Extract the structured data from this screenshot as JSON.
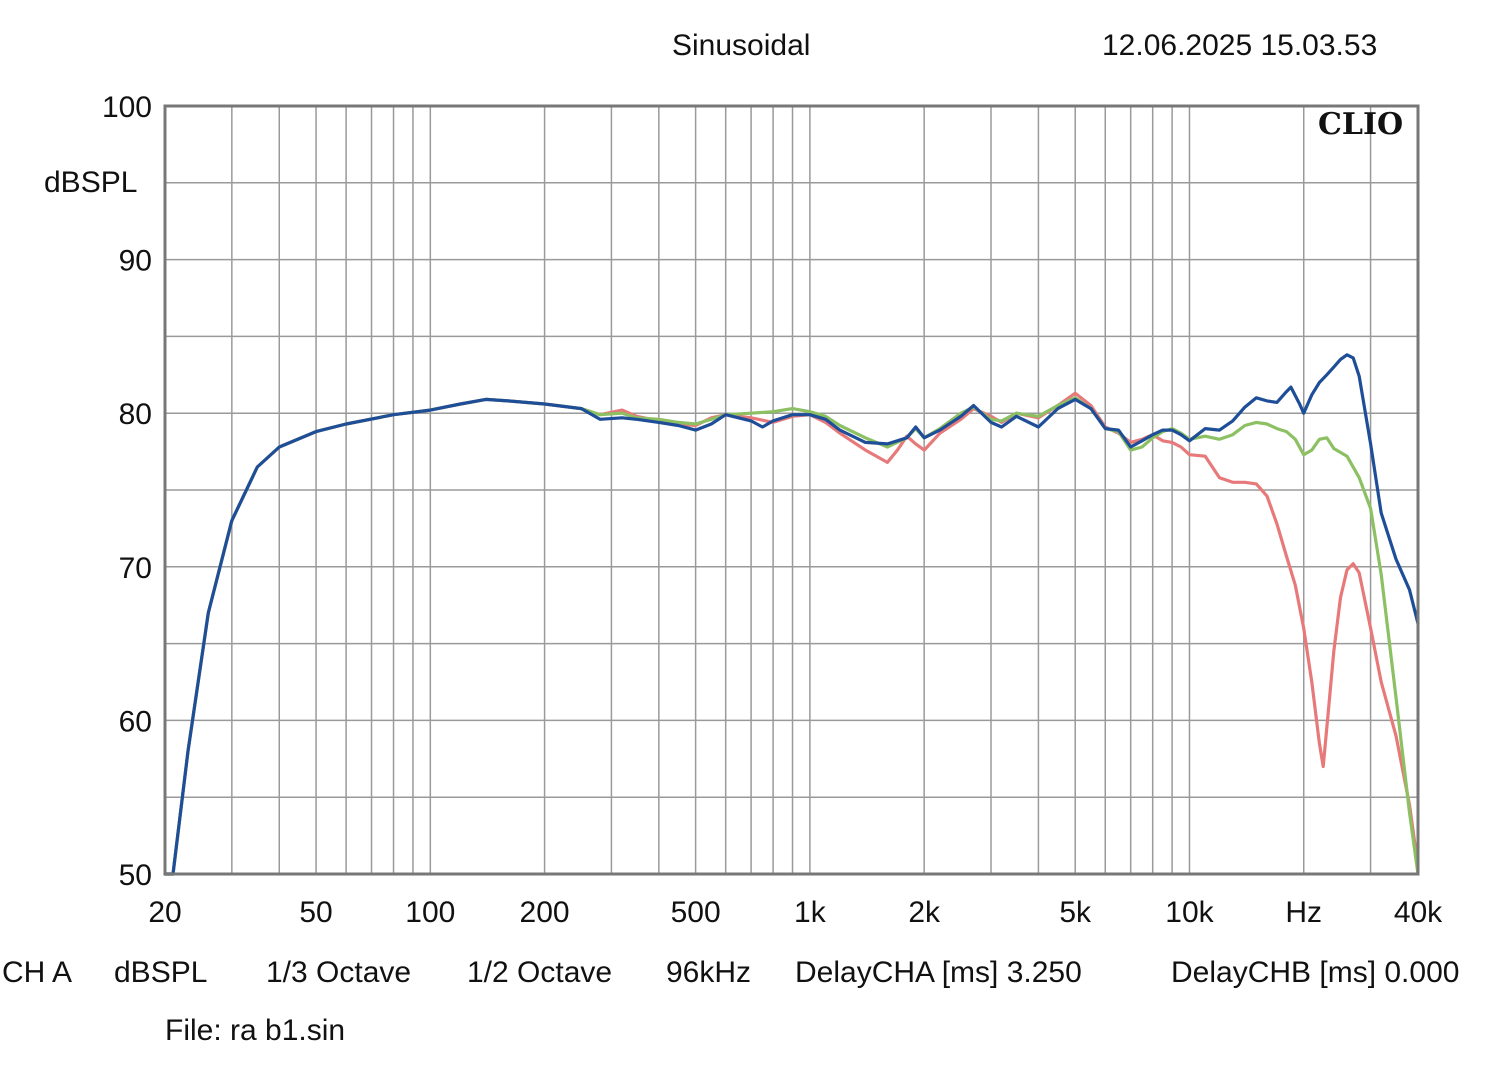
{
  "header": {
    "mode": "Sinusoidal",
    "datetime": "12.06.2025 15.03.53",
    "brand": "CLIO"
  },
  "footer": {
    "channel": "CH A",
    "units": "dBSPL",
    "smoothing1": "1/3 Octave",
    "smoothing2": "1/2 Octave",
    "sample_rate": "96kHz",
    "delay_a": "DelayCHA [ms] 3.250",
    "delay_b": "DelayCHB [ms] 0.000",
    "file": "File: ra b1.sin"
  },
  "chart_data": {
    "type": "line",
    "title": "Sinusoidal",
    "xscale": "log",
    "xlim": [
      20,
      40000
    ],
    "ylim": [
      50,
      100
    ],
    "ylabel": "dBSPL",
    "xlabel": "Hz",
    "grid": true,
    "y_ticks": [
      {
        "value": 100,
        "label": "100"
      },
      {
        "value": 90,
        "label": "90"
      },
      {
        "value": 80,
        "label": "80"
      },
      {
        "value": 70,
        "label": "70"
      },
      {
        "value": 60,
        "label": "60"
      },
      {
        "value": 50,
        "label": "50"
      }
    ],
    "x_ticks": [
      {
        "value": 20,
        "label": "20"
      },
      {
        "value": 50,
        "label": "50"
      },
      {
        "value": 100,
        "label": "100"
      },
      {
        "value": 200,
        "label": "200"
      },
      {
        "value": 500,
        "label": "500"
      },
      {
        "value": 1000,
        "label": "1k"
      },
      {
        "value": 2000,
        "label": "2k"
      },
      {
        "value": 5000,
        "label": "5k"
      },
      {
        "value": 10000,
        "label": "10k"
      },
      {
        "value": 20000,
        "label": "Hz"
      },
      {
        "value": 40000,
        "label": "40k"
      }
    ],
    "series": [
      {
        "name": "red",
        "color": "#e8797a",
        "points": [
          [
            20,
            50
          ],
          [
            21,
            50
          ],
          [
            23,
            58
          ],
          [
            26,
            67
          ],
          [
            30,
            73
          ],
          [
            35,
            76.5
          ],
          [
            40,
            77.8
          ],
          [
            50,
            78.8
          ],
          [
            60,
            79.3
          ],
          [
            80,
            79.9
          ],
          [
            100,
            80.2
          ],
          [
            120,
            80.6
          ],
          [
            140,
            80.9
          ],
          [
            160,
            80.8
          ],
          [
            200,
            80.6
          ],
          [
            250,
            80.3
          ],
          [
            280,
            79.9
          ],
          [
            320,
            80.2
          ],
          [
            350,
            79.8
          ],
          [
            400,
            79.5
          ],
          [
            450,
            79.3
          ],
          [
            500,
            79.2
          ],
          [
            550,
            79.7
          ],
          [
            600,
            79.9
          ],
          [
            700,
            79.7
          ],
          [
            800,
            79.4
          ],
          [
            900,
            79.8
          ],
          [
            1000,
            79.9
          ],
          [
            1100,
            79.4
          ],
          [
            1200,
            78.7
          ],
          [
            1400,
            77.6
          ],
          [
            1600,
            76.8
          ],
          [
            1700,
            77.6
          ],
          [
            1800,
            78.5
          ],
          [
            1900,
            78.0
          ],
          [
            2000,
            77.6
          ],
          [
            2200,
            78.7
          ],
          [
            2500,
            79.6
          ],
          [
            2700,
            80.3
          ],
          [
            3000,
            79.8
          ],
          [
            3200,
            79.4
          ],
          [
            3500,
            80.0
          ],
          [
            4000,
            79.7
          ],
          [
            4500,
            80.5
          ],
          [
            5000,
            81.3
          ],
          [
            5500,
            80.5
          ],
          [
            6000,
            79.1
          ],
          [
            6500,
            78.7
          ],
          [
            7000,
            78.1
          ],
          [
            7500,
            78.3
          ],
          [
            8000,
            78.6
          ],
          [
            8500,
            78.2
          ],
          [
            9000,
            78.1
          ],
          [
            9500,
            77.8
          ],
          [
            10000,
            77.3
          ],
          [
            11000,
            77.2
          ],
          [
            12000,
            75.8
          ],
          [
            13000,
            75.5
          ],
          [
            14000,
            75.5
          ],
          [
            15000,
            75.4
          ],
          [
            16000,
            74.6
          ],
          [
            17000,
            72.8
          ],
          [
            18000,
            70.7
          ],
          [
            19000,
            68.8
          ],
          [
            20000,
            66.0
          ],
          [
            21000,
            62.5
          ],
          [
            22000,
            58.5
          ],
          [
            22500,
            57.0
          ],
          [
            23200,
            60.5
          ],
          [
            24000,
            64.5
          ],
          [
            25000,
            68.0
          ],
          [
            26000,
            69.8
          ],
          [
            27000,
            70.2
          ],
          [
            28000,
            69.6
          ],
          [
            30000,
            66.0
          ],
          [
            32000,
            62.5
          ],
          [
            35000,
            59.0
          ],
          [
            38000,
            54.5
          ],
          [
            40000,
            50.5
          ]
        ]
      },
      {
        "name": "green",
        "color": "#8cc063",
        "points": [
          [
            20,
            50
          ],
          [
            21,
            50
          ],
          [
            23,
            58
          ],
          [
            26,
            67
          ],
          [
            30,
            73
          ],
          [
            35,
            76.5
          ],
          [
            40,
            77.8
          ],
          [
            50,
            78.8
          ],
          [
            60,
            79.3
          ],
          [
            80,
            79.9
          ],
          [
            100,
            80.2
          ],
          [
            120,
            80.6
          ],
          [
            140,
            80.9
          ],
          [
            160,
            80.8
          ],
          [
            200,
            80.6
          ],
          [
            250,
            80.3
          ],
          [
            280,
            79.9
          ],
          [
            320,
            80.0
          ],
          [
            350,
            79.7
          ],
          [
            400,
            79.6
          ],
          [
            450,
            79.4
          ],
          [
            500,
            79.3
          ],
          [
            550,
            79.6
          ],
          [
            600,
            79.9
          ],
          [
            700,
            80.0
          ],
          [
            800,
            80.1
          ],
          [
            900,
            80.3
          ],
          [
            1000,
            80.1
          ],
          [
            1100,
            79.8
          ],
          [
            1200,
            79.2
          ],
          [
            1400,
            78.4
          ],
          [
            1600,
            77.8
          ],
          [
            1800,
            78.4
          ],
          [
            1900,
            79.0
          ],
          [
            2000,
            78.4
          ],
          [
            2200,
            79.0
          ],
          [
            2500,
            80.0
          ],
          [
            2700,
            80.4
          ],
          [
            3000,
            79.6
          ],
          [
            3200,
            79.5
          ],
          [
            3500,
            80.0
          ],
          [
            4000,
            79.8
          ],
          [
            4500,
            80.5
          ],
          [
            5000,
            81.0
          ],
          [
            5500,
            80.3
          ],
          [
            6000,
            79.0
          ],
          [
            6500,
            78.8
          ],
          [
            7000,
            77.6
          ],
          [
            7500,
            77.8
          ],
          [
            8000,
            78.4
          ],
          [
            8500,
            78.8
          ],
          [
            9000,
            79.0
          ],
          [
            9500,
            78.7
          ],
          [
            10000,
            78.3
          ],
          [
            11000,
            78.5
          ],
          [
            12000,
            78.3
          ],
          [
            13000,
            78.6
          ],
          [
            14000,
            79.2
          ],
          [
            15000,
            79.4
          ],
          [
            16000,
            79.3
          ],
          [
            17000,
            79.0
          ],
          [
            18000,
            78.8
          ],
          [
            19000,
            78.3
          ],
          [
            20000,
            77.3
          ],
          [
            21000,
            77.6
          ],
          [
            22000,
            78.3
          ],
          [
            23000,
            78.4
          ],
          [
            24000,
            77.7
          ],
          [
            26000,
            77.2
          ],
          [
            28000,
            75.8
          ],
          [
            30000,
            73.8
          ],
          [
            32000,
            69.5
          ],
          [
            35000,
            61.5
          ],
          [
            38000,
            54.0
          ],
          [
            40000,
            50.0
          ]
        ]
      },
      {
        "name": "blue",
        "color": "#1f4e98",
        "points": [
          [
            20,
            50
          ],
          [
            21,
            50
          ],
          [
            23,
            58
          ],
          [
            26,
            67
          ],
          [
            30,
            73
          ],
          [
            35,
            76.5
          ],
          [
            40,
            77.8
          ],
          [
            50,
            78.8
          ],
          [
            60,
            79.3
          ],
          [
            80,
            79.9
          ],
          [
            100,
            80.2
          ],
          [
            120,
            80.6
          ],
          [
            140,
            80.9
          ],
          [
            160,
            80.8
          ],
          [
            200,
            80.6
          ],
          [
            250,
            80.3
          ],
          [
            280,
            79.6
          ],
          [
            320,
            79.7
          ],
          [
            350,
            79.6
          ],
          [
            400,
            79.4
          ],
          [
            450,
            79.2
          ],
          [
            500,
            78.9
          ],
          [
            550,
            79.3
          ],
          [
            600,
            79.9
          ],
          [
            700,
            79.5
          ],
          [
            750,
            79.1
          ],
          [
            800,
            79.5
          ],
          [
            900,
            79.9
          ],
          [
            1000,
            79.9
          ],
          [
            1100,
            79.6
          ],
          [
            1200,
            78.9
          ],
          [
            1400,
            78.1
          ],
          [
            1600,
            78.0
          ],
          [
            1800,
            78.4
          ],
          [
            1900,
            79.1
          ],
          [
            2000,
            78.4
          ],
          [
            2200,
            78.9
          ],
          [
            2500,
            79.8
          ],
          [
            2700,
            80.5
          ],
          [
            3000,
            79.4
          ],
          [
            3200,
            79.1
          ],
          [
            3500,
            79.8
          ],
          [
            4000,
            79.1
          ],
          [
            4500,
            80.3
          ],
          [
            5000,
            80.9
          ],
          [
            5500,
            80.3
          ],
          [
            6000,
            79.0
          ],
          [
            6500,
            78.9
          ],
          [
            7000,
            77.8
          ],
          [
            7500,
            78.2
          ],
          [
            8000,
            78.6
          ],
          [
            8500,
            78.9
          ],
          [
            9000,
            78.9
          ],
          [
            9500,
            78.6
          ],
          [
            10000,
            78.2
          ],
          [
            11000,
            79.0
          ],
          [
            12000,
            78.9
          ],
          [
            13000,
            79.5
          ],
          [
            14000,
            80.4
          ],
          [
            15000,
            81.0
          ],
          [
            16000,
            80.8
          ],
          [
            17000,
            80.7
          ],
          [
            18000,
            81.4
          ],
          [
            18500,
            81.7
          ],
          [
            19500,
            80.6
          ],
          [
            20000,
            80.0
          ],
          [
            21000,
            81.2
          ],
          [
            22000,
            82.0
          ],
          [
            23000,
            82.5
          ],
          [
            24000,
            83.0
          ],
          [
            25000,
            83.5
          ],
          [
            26000,
            83.8
          ],
          [
            27000,
            83.6
          ],
          [
            28000,
            82.4
          ],
          [
            30000,
            78.0
          ],
          [
            32000,
            73.5
          ],
          [
            35000,
            70.5
          ],
          [
            38000,
            68.5
          ],
          [
            40000,
            66.3
          ]
        ]
      }
    ]
  }
}
